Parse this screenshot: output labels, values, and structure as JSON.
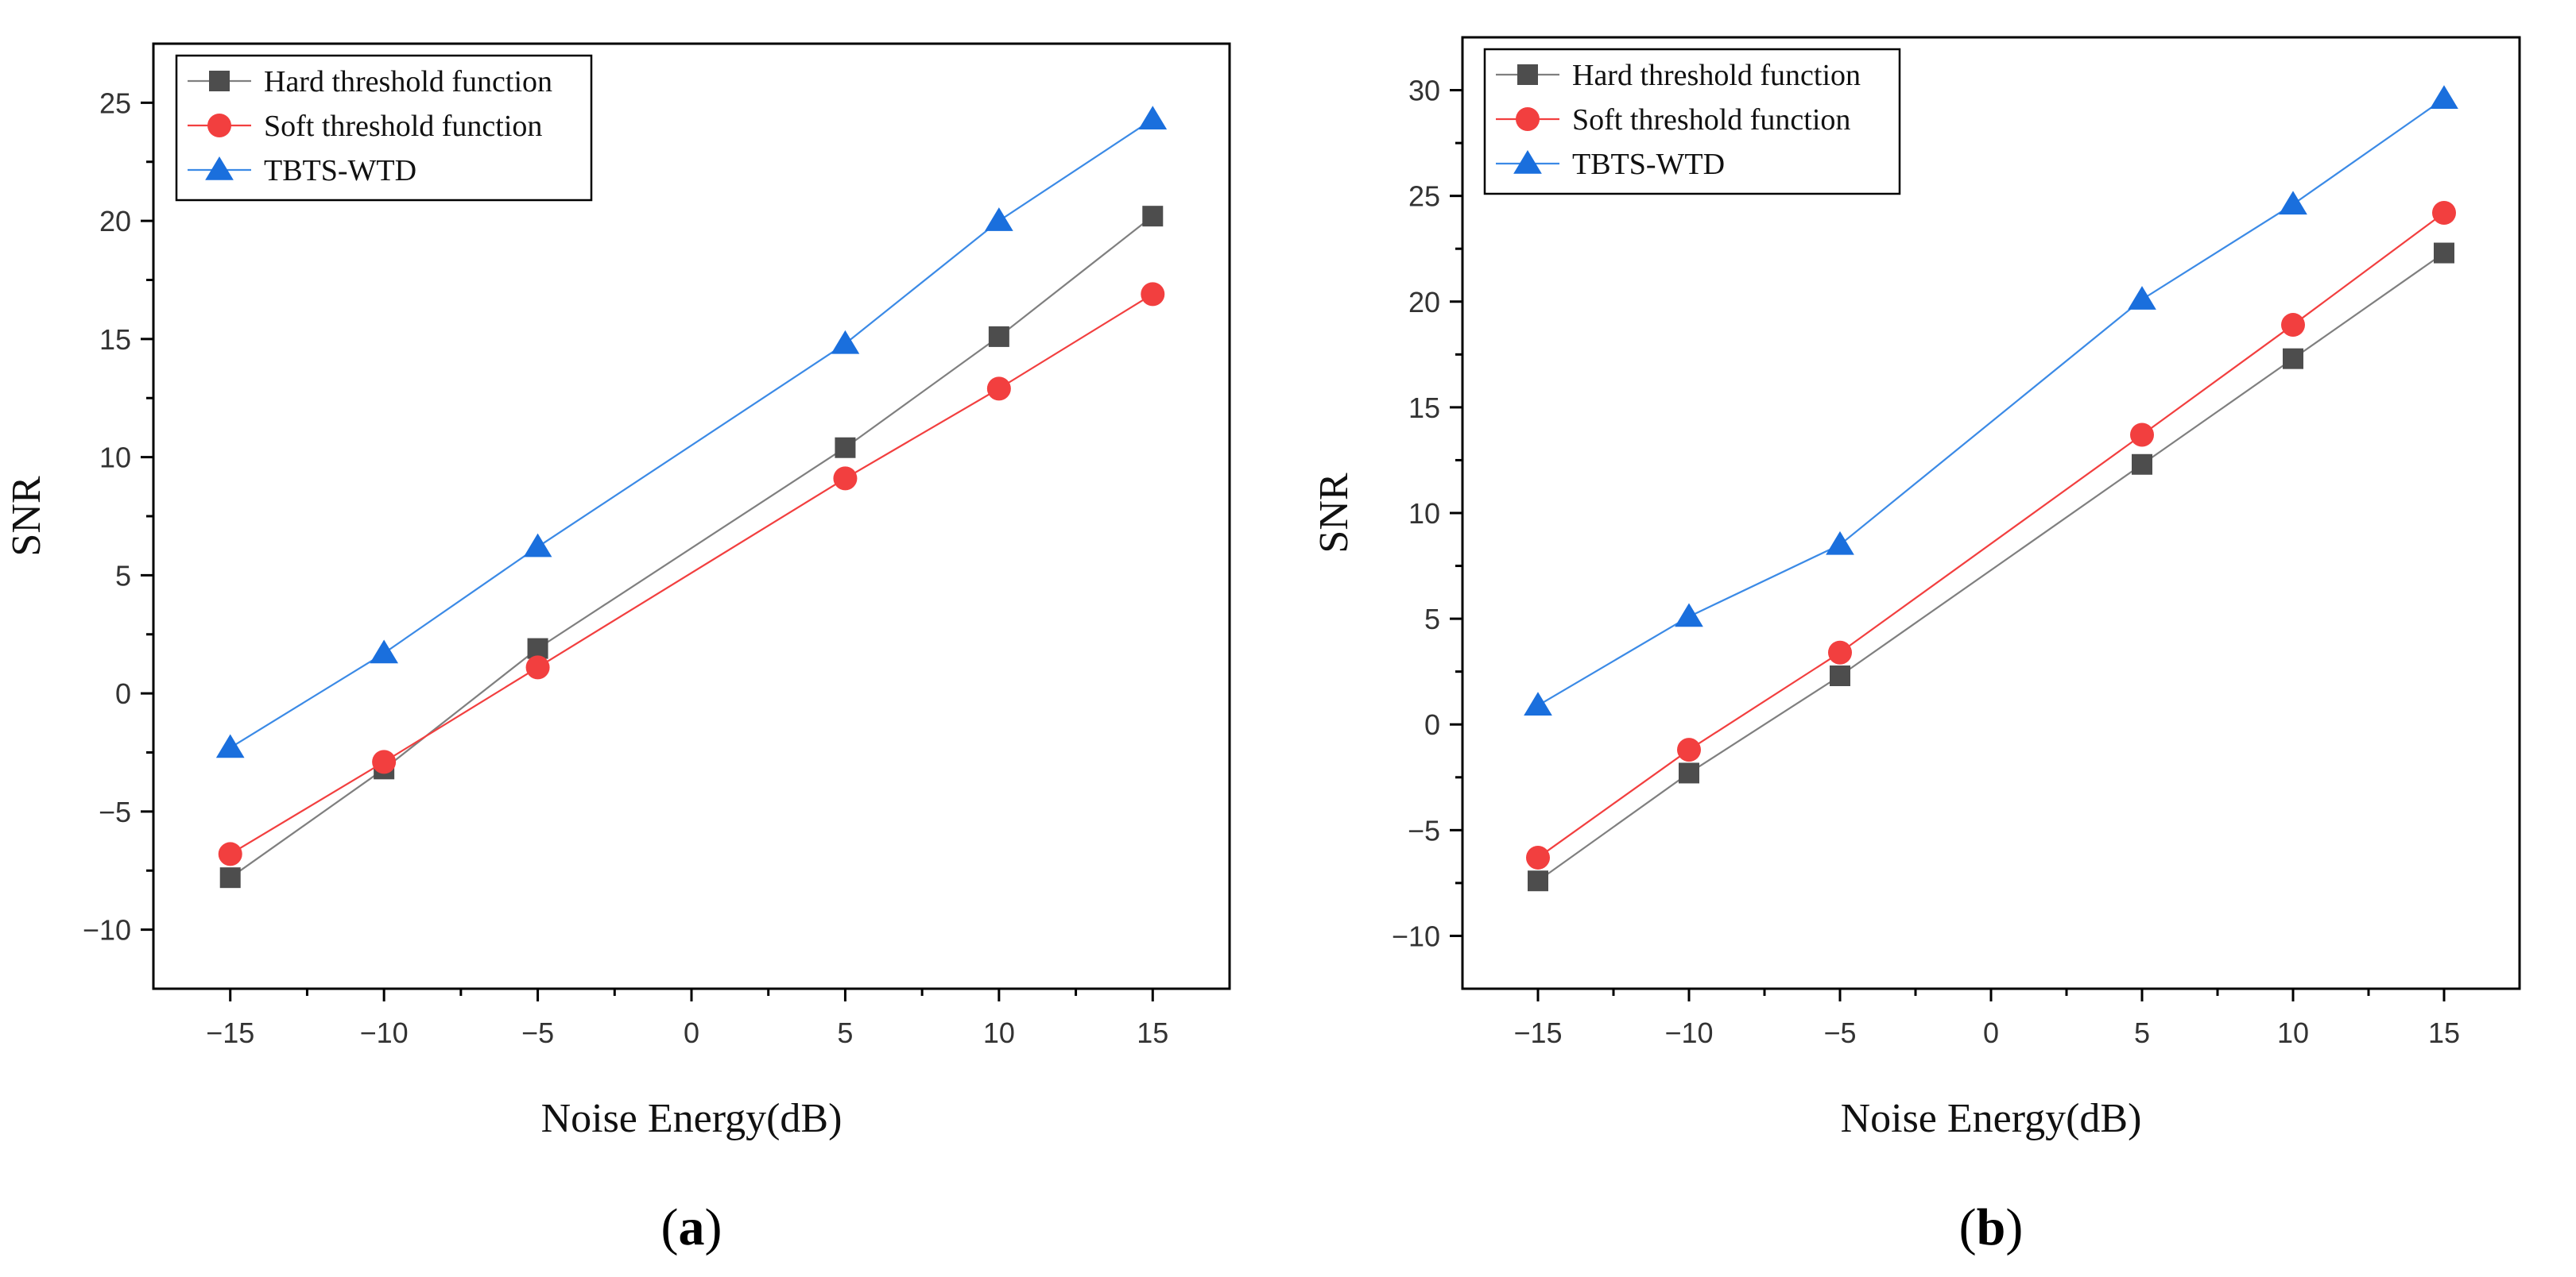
{
  "chart_data": [
    {
      "type": "line",
      "panel_label": "a",
      "xlabel": "Noise Energy(dB)",
      "ylabel": "SNR",
      "xlim": [
        -17.5,
        17.5
      ],
      "ylim": [
        -12.5,
        27.5
      ],
      "xticks": [
        -15,
        -10,
        -5,
        0,
        5,
        10,
        15
      ],
      "yticks": [
        -10,
        -5,
        0,
        5,
        10,
        15,
        20,
        25
      ],
      "grid": false,
      "legend_position": "top-left",
      "x": [
        -15,
        -10,
        -5,
        5,
        10,
        15
      ],
      "series": [
        {
          "name": "Hard threshold function",
          "marker": "square",
          "color": "#4d4d4d",
          "line_color": "#7f7f7f",
          "values": [
            -7.8,
            -3.2,
            1.9,
            10.4,
            15.1,
            20.2
          ]
        },
        {
          "name": "Soft threshold function",
          "marker": "circle",
          "color": "#f23f3f",
          "line_color": "#f23f3f",
          "values": [
            -6.8,
            -2.9,
            1.1,
            9.1,
            12.9,
            16.9
          ]
        },
        {
          "name": "TBTS-WTD",
          "marker": "triangle",
          "color": "#1a6fdd",
          "line_color": "#3b8ae6",
          "values": [
            -2.3,
            1.7,
            6.2,
            14.8,
            20.0,
            24.3
          ]
        }
      ]
    },
    {
      "type": "line",
      "panel_label": "b",
      "xlabel": "Noise Energy(dB)",
      "ylabel": "SNR",
      "xlim": [
        -17.5,
        17.5
      ],
      "ylim": [
        -12.5,
        32.5
      ],
      "xticks": [
        -15,
        -10,
        -5,
        0,
        5,
        10,
        15
      ],
      "yticks": [
        -10,
        -5,
        0,
        5,
        10,
        15,
        20,
        25,
        30
      ],
      "grid": false,
      "legend_position": "top-left",
      "x": [
        -15,
        -10,
        -5,
        5,
        10,
        15
      ],
      "series": [
        {
          "name": "Hard threshold function",
          "marker": "square",
          "color": "#4d4d4d",
          "line_color": "#7f7f7f",
          "values": [
            -7.4,
            -2.3,
            2.3,
            12.3,
            17.3,
            22.3
          ]
        },
        {
          "name": "Soft threshold function",
          "marker": "circle",
          "color": "#f23f3f",
          "line_color": "#f23f3f",
          "values": [
            -6.3,
            -1.2,
            3.4,
            13.7,
            18.9,
            24.2
          ]
        },
        {
          "name": "TBTS-WTD",
          "marker": "triangle",
          "color": "#1a6fdd",
          "line_color": "#3b8ae6",
          "values": [
            0.9,
            5.1,
            8.5,
            20.1,
            24.6,
            29.6
          ]
        }
      ]
    }
  ]
}
